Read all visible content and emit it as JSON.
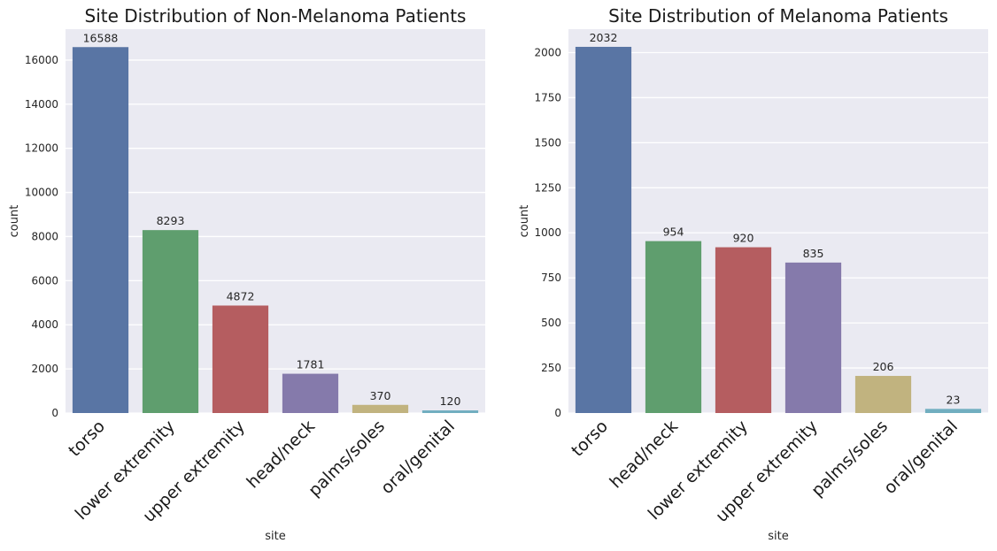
{
  "chart_data": [
    {
      "type": "bar",
      "title": "Site Distribution of Non-Melanoma Patients",
      "xlabel": "site",
      "ylabel": "count",
      "categories": [
        "torso",
        "lower extremity",
        "upper extremity",
        "head/neck",
        "palms/soles",
        "oral/genital"
      ],
      "values": [
        16588,
        8293,
        4872,
        1781,
        370,
        120
      ],
      "colors": [
        "#5975a4",
        "#5f9e6e",
        "#b55d60",
        "#857aab",
        "#c1b37f",
        "#71aec0"
      ],
      "ylim": [
        0,
        17400
      ],
      "yticks": [
        0,
        2000,
        4000,
        6000,
        8000,
        10000,
        12000,
        14000,
        16000
      ],
      "grid": true,
      "background": "#eaeaf2"
    },
    {
      "type": "bar",
      "title": "Site Distribution of Melanoma Patients",
      "xlabel": "site",
      "ylabel": "count",
      "categories": [
        "torso",
        "head/neck",
        "lower extremity",
        "upper extremity",
        "palms/soles",
        "oral/genital"
      ],
      "values": [
        2032,
        954,
        920,
        835,
        206,
        23
      ],
      "colors": [
        "#5975a4",
        "#5f9e6e",
        "#b55d60",
        "#857aab",
        "#c1b37f",
        "#71aec0"
      ],
      "ylim": [
        0,
        2130
      ],
      "yticks": [
        0,
        250,
        500,
        750,
        1000,
        1250,
        1500,
        1750,
        2000
      ],
      "grid": true,
      "background": "#eaeaf2"
    }
  ]
}
